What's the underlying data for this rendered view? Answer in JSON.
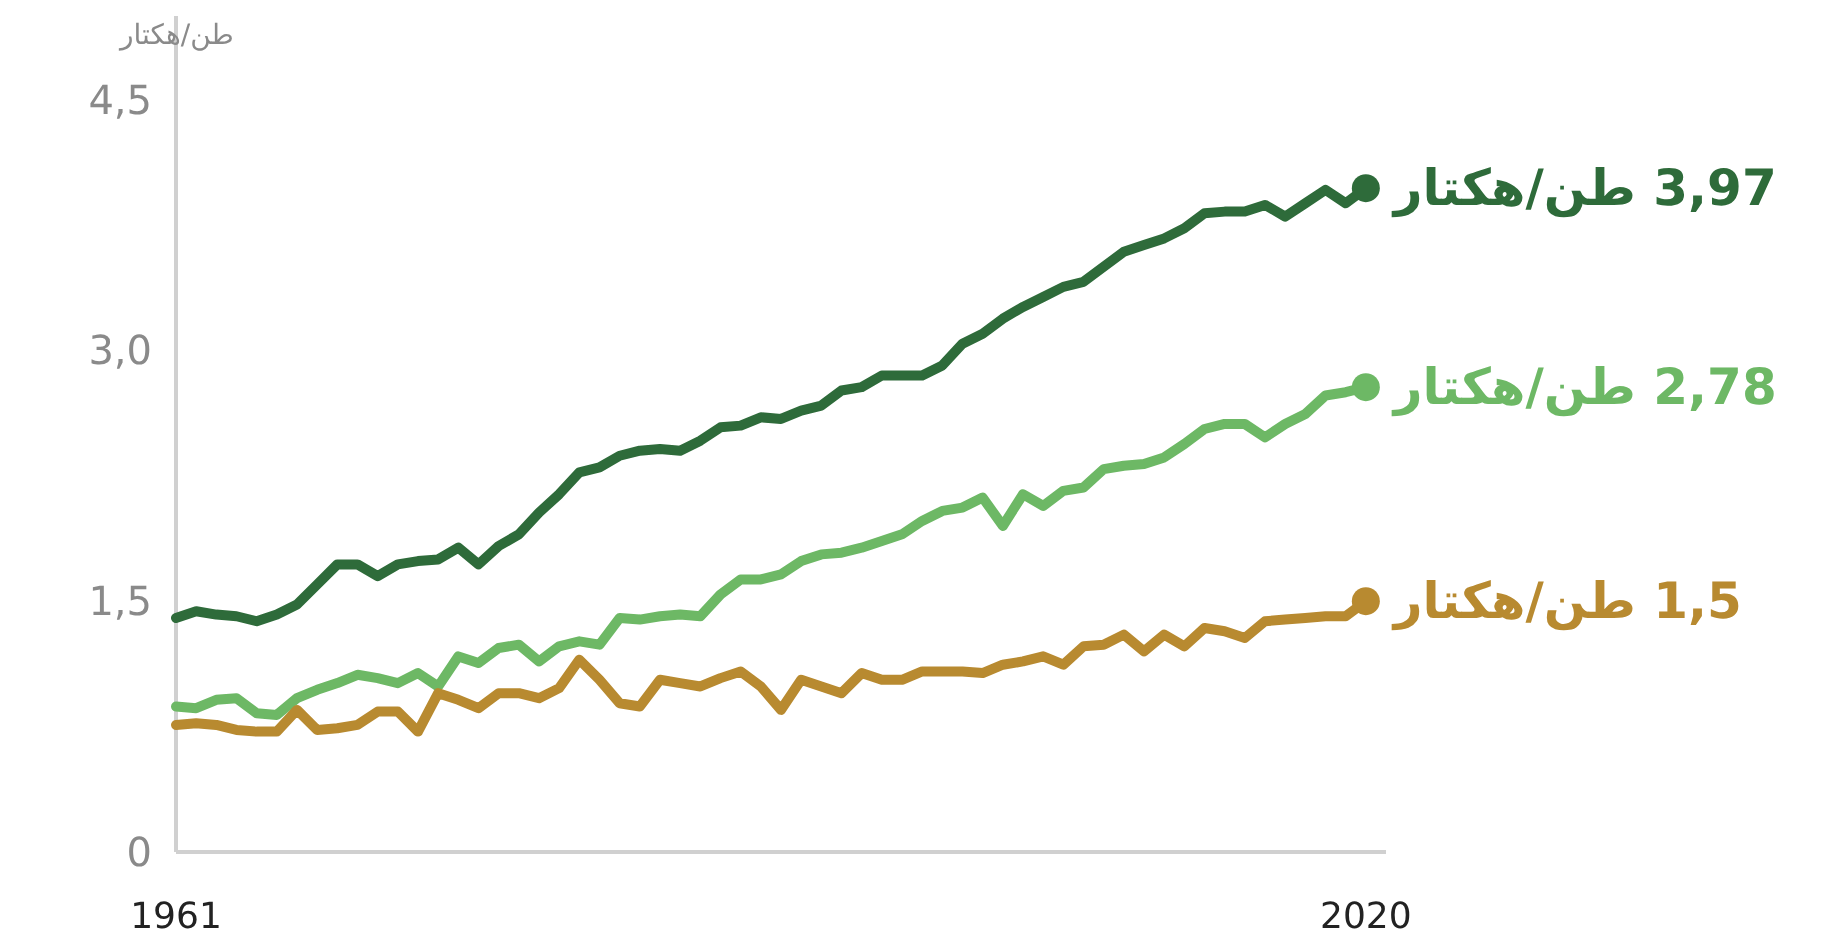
{
  "chart_data": {
    "type": "line",
    "ylabel": "طن/هكتار",
    "x": [
      1961,
      1962,
      1963,
      1964,
      1965,
      1966,
      1967,
      1968,
      1969,
      1970,
      1971,
      1972,
      1973,
      1974,
      1975,
      1976,
      1977,
      1978,
      1979,
      1980,
      1981,
      1982,
      1983,
      1984,
      1985,
      1986,
      1987,
      1988,
      1989,
      1990,
      1991,
      1992,
      1993,
      1994,
      1995,
      1996,
      1997,
      1998,
      1999,
      2000,
      2001,
      2002,
      2003,
      2004,
      2005,
      2006,
      2007,
      2008,
      2009,
      2010,
      2011,
      2012,
      2013,
      2014,
      2015,
      2016,
      2017,
      2018,
      2019,
      2020
    ],
    "xlim": [
      1961,
      2021
    ],
    "xticks": [
      1961,
      2020
    ],
    "ylim": [
      0,
      5
    ],
    "yticks": [
      {
        "value": 0,
        "label": "0"
      },
      {
        "value": 1.5,
        "label": "1,5"
      },
      {
        "value": 3,
        "label": "3,0"
      },
      {
        "value": 4.5,
        "label": "4,5"
      }
    ],
    "grid": false,
    "series": [
      {
        "color": "#2e6b3a",
        "values": [
          1.4,
          1.44,
          1.42,
          1.41,
          1.38,
          1.42,
          1.48,
          1.6,
          1.72,
          1.72,
          1.65,
          1.72,
          1.74,
          1.75,
          1.82,
          1.72,
          1.83,
          1.9,
          2.03,
          2.14,
          2.27,
          2.3,
          2.37,
          2.4,
          2.41,
          2.4,
          2.46,
          2.54,
          2.55,
          2.6,
          2.59,
          2.64,
          2.67,
          2.76,
          2.78,
          2.85,
          2.85,
          2.85,
          2.91,
          3.04,
          3.1,
          3.19,
          3.26,
          3.32,
          3.38,
          3.41,
          3.5,
          3.59,
          3.63,
          3.67,
          3.73,
          3.82,
          3.83,
          3.83,
          3.87,
          3.8,
          3.88,
          3.96,
          3.88,
          3.97
        ],
        "value_labels": [
          null,
          null,
          null,
          null,
          null,
          null,
          null,
          null,
          null,
          null,
          null,
          null,
          null,
          null,
          null,
          null,
          null,
          null,
          null,
          null,
          null,
          null,
          null,
          null,
          null,
          null,
          null,
          null,
          null,
          null,
          null,
          null,
          null,
          null,
          null,
          null,
          null,
          null,
          null,
          null,
          null,
          null,
          null,
          null,
          null,
          null,
          null,
          null,
          null,
          null,
          null,
          null,
          null,
          null,
          null,
          null,
          null,
          null,
          null,
          "3,97 طن/هكتار"
        ]
      },
      {
        "color": "#6db865",
        "values": [
          0.87,
          0.86,
          0.91,
          0.92,
          0.83,
          0.82,
          0.92,
          0.97,
          1.01,
          1.06,
          1.04,
          1.01,
          1.07,
          0.99,
          1.17,
          1.13,
          1.22,
          1.24,
          1.14,
          1.23,
          1.26,
          1.24,
          1.4,
          1.39,
          1.41,
          1.42,
          1.41,
          1.54,
          1.63,
          1.63,
          1.66,
          1.74,
          1.78,
          1.79,
          1.82,
          1.86,
          1.9,
          1.98,
          2.04,
          2.06,
          2.12,
          1.95,
          2.14,
          2.07,
          2.16,
          2.18,
          2.29,
          2.31,
          2.32,
          2.36,
          2.44,
          2.53,
          2.56,
          2.56,
          2.48,
          2.56,
          2.62,
          2.73,
          2.75,
          2.78
        ],
        "value_labels": [
          null,
          null,
          null,
          null,
          null,
          null,
          null,
          null,
          null,
          null,
          null,
          null,
          null,
          null,
          null,
          null,
          null,
          null,
          null,
          null,
          null,
          null,
          null,
          null,
          null,
          null,
          null,
          null,
          null,
          null,
          null,
          null,
          null,
          null,
          null,
          null,
          null,
          null,
          null,
          null,
          null,
          null,
          null,
          null,
          null,
          null,
          null,
          null,
          null,
          null,
          null,
          null,
          null,
          null,
          null,
          null,
          null,
          null,
          null,
          "2,78 طن/هكتار"
        ]
      },
      {
        "color": "#b88a30",
        "values": [
          0.76,
          0.77,
          0.76,
          0.73,
          0.72,
          0.72,
          0.85,
          0.73,
          0.74,
          0.76,
          0.84,
          0.84,
          0.72,
          0.95,
          0.91,
          0.86,
          0.95,
          0.95,
          0.92,
          0.98,
          1.15,
          1.03,
          0.89,
          0.87,
          1.03,
          1.01,
          0.99,
          1.04,
          1.08,
          0.99,
          0.85,
          1.03,
          0.99,
          0.95,
          1.07,
          1.03,
          1.03,
          1.08,
          1.08,
          1.08,
          1.07,
          1.12,
          1.14,
          1.17,
          1.12,
          1.23,
          1.24,
          1.3,
          1.2,
          1.3,
          1.23,
          1.34,
          1.32,
          1.28,
          1.38,
          1.39,
          1.4,
          1.41,
          1.41,
          1.5
        ],
        "value_labels": [
          null,
          null,
          null,
          null,
          null,
          null,
          null,
          null,
          null,
          null,
          null,
          null,
          null,
          null,
          null,
          null,
          null,
          null,
          null,
          null,
          null,
          null,
          null,
          null,
          null,
          null,
          null,
          null,
          null,
          null,
          null,
          null,
          null,
          null,
          null,
          null,
          null,
          null,
          null,
          null,
          null,
          null,
          null,
          null,
          null,
          null,
          null,
          null,
          null,
          null,
          null,
          null,
          null,
          null,
          null,
          null,
          null,
          null,
          null,
          "1,5 طن/هكتار"
        ]
      }
    ]
  }
}
